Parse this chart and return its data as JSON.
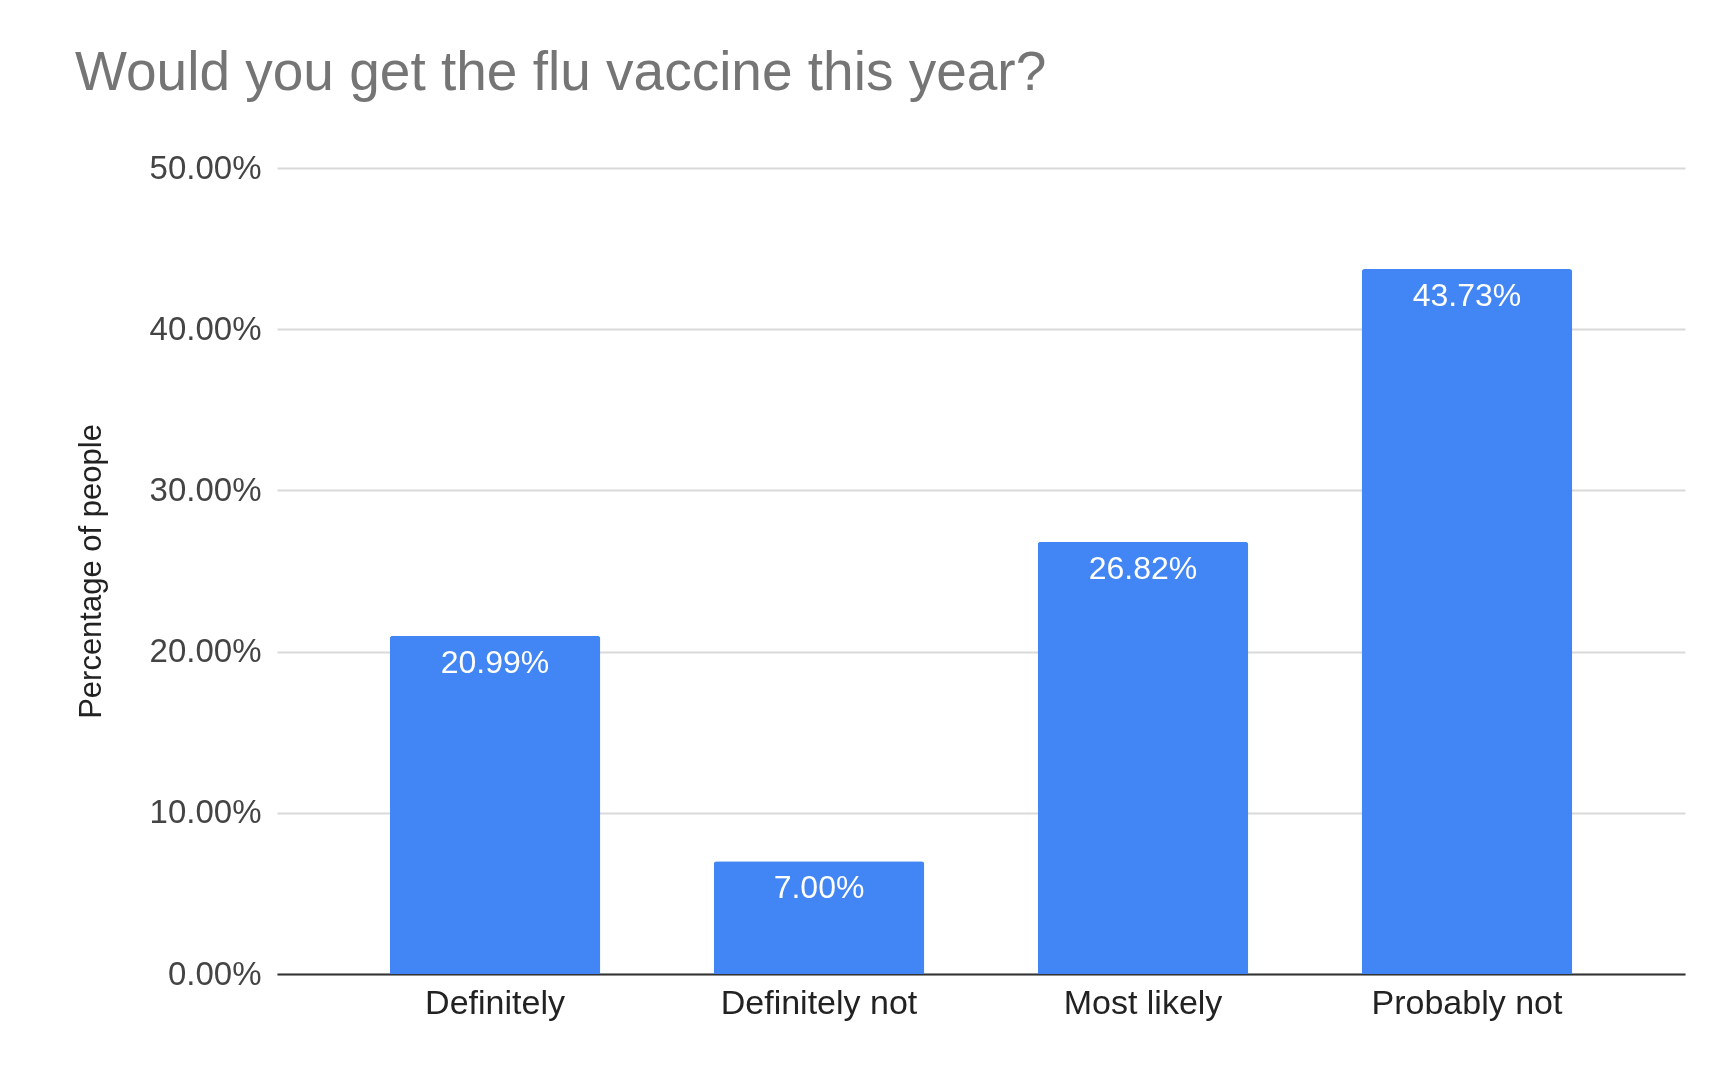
{
  "chart_data": {
    "type": "bar",
    "title": "Would you get the flu vaccine this year?",
    "ylabel": "Percentage of people",
    "categories": [
      "Definitely",
      "Definitely not",
      "Most likely",
      "Probably not"
    ],
    "values": [
      20.99,
      7.0,
      26.82,
      43.73
    ],
    "value_labels": [
      "20.99%",
      "7.00%",
      "26.82%",
      "43.73%"
    ],
    "color": "#4285f4",
    "ylim": [
      0,
      50
    ],
    "yticks": [
      {
        "value": 0,
        "label": "0.00%"
      },
      {
        "value": 10,
        "label": "10.00%"
      },
      {
        "value": 20,
        "label": "20.00%"
      },
      {
        "value": 30,
        "label": "30.00%"
      },
      {
        "value": 40,
        "label": "40.00%"
      },
      {
        "value": 50,
        "label": "50.00%"
      }
    ],
    "grid": true
  }
}
